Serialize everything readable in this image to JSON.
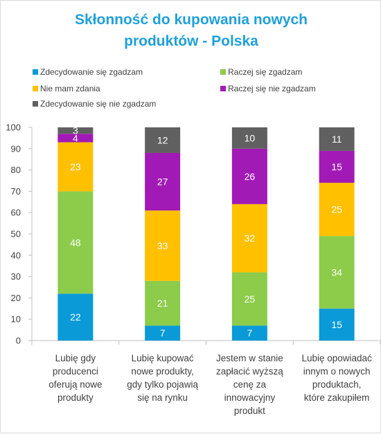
{
  "chart_data": {
    "type": "bar",
    "stacked": true,
    "title_lines": [
      "Skłonność do kupowania nowych",
      "produktów  - Polska"
    ],
    "categories": [
      [
        "Lubię gdy",
        "producenci",
        "oferują nowe",
        "produkty"
      ],
      [
        "Lubię kupować",
        "nowe produkty,",
        "gdy tylko pojawią",
        "się na rynku"
      ],
      [
        "Jestem w stanie",
        "zapłacić wyższą",
        "cenę za",
        "innowacyjny",
        "produkt"
      ],
      [
        "Lubię opowiadać",
        "innym o nowych",
        "produktach,",
        "które zakupiłem"
      ]
    ],
    "series": [
      {
        "name": "Zdecydowanie się zgadzam",
        "color": "#0a9ad7",
        "values": [
          22,
          7,
          7,
          15
        ]
      },
      {
        "name": "Raczej się zgadzam",
        "color": "#8ccc4a",
        "values": [
          48,
          21,
          25,
          34
        ]
      },
      {
        "name": "Nie mam zdania",
        "color": "#ffc000",
        "values": [
          23,
          33,
          32,
          25
        ]
      },
      {
        "name": "Raczej się nie zgadzam",
        "color": "#a21ab5",
        "values": [
          4,
          27,
          26,
          15
        ]
      },
      {
        "name": "Zdecydowanie się nie zgadzam",
        "color": "#606060",
        "values": [
          3,
          12,
          10,
          11
        ]
      }
    ],
    "ylim": [
      0,
      100
    ],
    "yticks": [
      0,
      10,
      20,
      30,
      40,
      50,
      60,
      70,
      80,
      90,
      100
    ],
    "legend_position": "top",
    "grid": false
  }
}
